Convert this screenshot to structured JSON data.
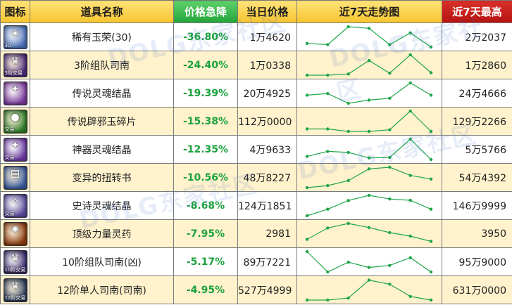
{
  "headers": {
    "icon": "图标",
    "name": "道具名称",
    "drop": "价格急降",
    "price": "当日价格",
    "trend": "近7天走势图",
    "max": "近7天最高"
  },
  "colors": {
    "header_bg": "#f6c52e",
    "drop_header_bg": "#22a43a",
    "max_header_bg": "#b5120f",
    "drop_text": "#1aa13e",
    "line": "#1fa64a",
    "row_alt": "#fff2cc"
  },
  "watermark": "DOLG东家社区",
  "rows": [
    {
      "icon_name": "jade-icon",
      "icon_color": "#4a6fb5",
      "icon_glyph": "◈",
      "icon_tag": "30",
      "name": "稀有玉荣(30)",
      "drop": "-36.80%",
      "price": "1万4620",
      "max": "2万2037"
    },
    {
      "icon_name": "crown-icon",
      "icon_color": "#4a2a7a",
      "icon_glyph": "♛",
      "icon_tag": "3阶交易",
      "name": "3阶组队司南",
      "drop": "-24.40%",
      "price": "1万0338",
      "max": "1万2860"
    },
    {
      "icon_name": "soul-crystal-icon",
      "icon_color": "#7a3a9a",
      "icon_glyph": "✦",
      "icon_tag": "",
      "name": "传说灵魂结晶",
      "drop": "-19.39%",
      "price": "20万4925",
      "max": "24万4666"
    },
    {
      "icon_name": "jade-shard-icon",
      "icon_color": "#2f7a2a",
      "icon_glyph": "●",
      "icon_tag": "交易",
      "name": "传说辟邪玉碎片",
      "drop": "-15.38%",
      "price": "112万0000",
      "max": "129万2266"
    },
    {
      "icon_name": "artifact-crystal-icon",
      "icon_color": "#6a3aa0",
      "icon_glyph": "✦",
      "icon_tag": "交易",
      "name": "神器灵魂结晶",
      "drop": "-12.35%",
      "price": "4万9633",
      "max": "5万5766"
    },
    {
      "icon_name": "scroll-icon",
      "icon_color": "#3a5a9a",
      "icon_glyph": "▤",
      "icon_tag": "",
      "name": "变异的扭转书",
      "drop": "-10.56%",
      "price": "48万8227",
      "max": "54万4392"
    },
    {
      "icon_name": "epic-crystal-icon",
      "icon_color": "#5a4a9a",
      "icon_glyph": "✧",
      "icon_tag": "交易",
      "name": "史诗灵魂结晶",
      "drop": "-8.68%",
      "price": "124万1851",
      "max": "146万9999"
    },
    {
      "icon_name": "potion-icon",
      "icon_color": "#8a3a10",
      "icon_glyph": "✺",
      "icon_tag": "",
      "name": "顶级力量灵药",
      "drop": "-7.95%",
      "price": "2981",
      "max": "3950"
    },
    {
      "icon_name": "crown-icon",
      "icon_color": "#3a2a6a",
      "icon_glyph": "♛",
      "icon_tag": "10阶交易",
      "name": "10阶组队司南(凶)",
      "drop": "-5.17%",
      "price": "89万7221",
      "max": "95万9000"
    },
    {
      "icon_name": "crown-icon",
      "icon_color": "#2a3a5a",
      "icon_glyph": "♛",
      "icon_tag": "12阶交易",
      "name": "12阶单人司南(司南)",
      "drop": "-4.95%",
      "price": "527万4999",
      "max": "631万0000"
    }
  ],
  "chart_data": {
    "type": "line",
    "title": "近7天走势图",
    "x": [
      1,
      2,
      3,
      4,
      5,
      6,
      7
    ],
    "series": [
      {
        "values": [
          0.18,
          0.12,
          1.0,
          0.92,
          0.12,
          0.7,
          0.0
        ]
      },
      {
        "values": [
          0.0,
          0.0,
          0.06,
          0.72,
          0.1,
          1.0,
          0.12
        ]
      },
      {
        "values": [
          0.4,
          0.48,
          0.0,
          0.16,
          0.25,
          1.0,
          0.4
        ]
      },
      {
        "values": [
          0.12,
          0.12,
          0.0,
          0.0,
          0.08,
          1.0,
          0.0
        ]
      },
      {
        "values": [
          0.15,
          0.4,
          0.35,
          0.08,
          0.1,
          1.0,
          0.0
        ]
      },
      {
        "values": [
          0.0,
          0.1,
          0.35,
          0.92,
          1.0,
          0.6,
          0.42
        ]
      },
      {
        "values": [
          0.0,
          0.32,
          0.75,
          1.0,
          0.82,
          0.76,
          0.32
        ]
      },
      {
        "values": [
          0.22,
          0.78,
          1.0,
          0.8,
          0.55,
          0.38,
          0.12
        ]
      },
      {
        "values": [
          1.0,
          0.0,
          0.48,
          0.22,
          0.32,
          0.7,
          0.0
        ]
      },
      {
        "values": [
          0.0,
          0.0,
          0.1,
          0.98,
          0.78,
          0.18,
          0.0
        ]
      }
    ]
  }
}
